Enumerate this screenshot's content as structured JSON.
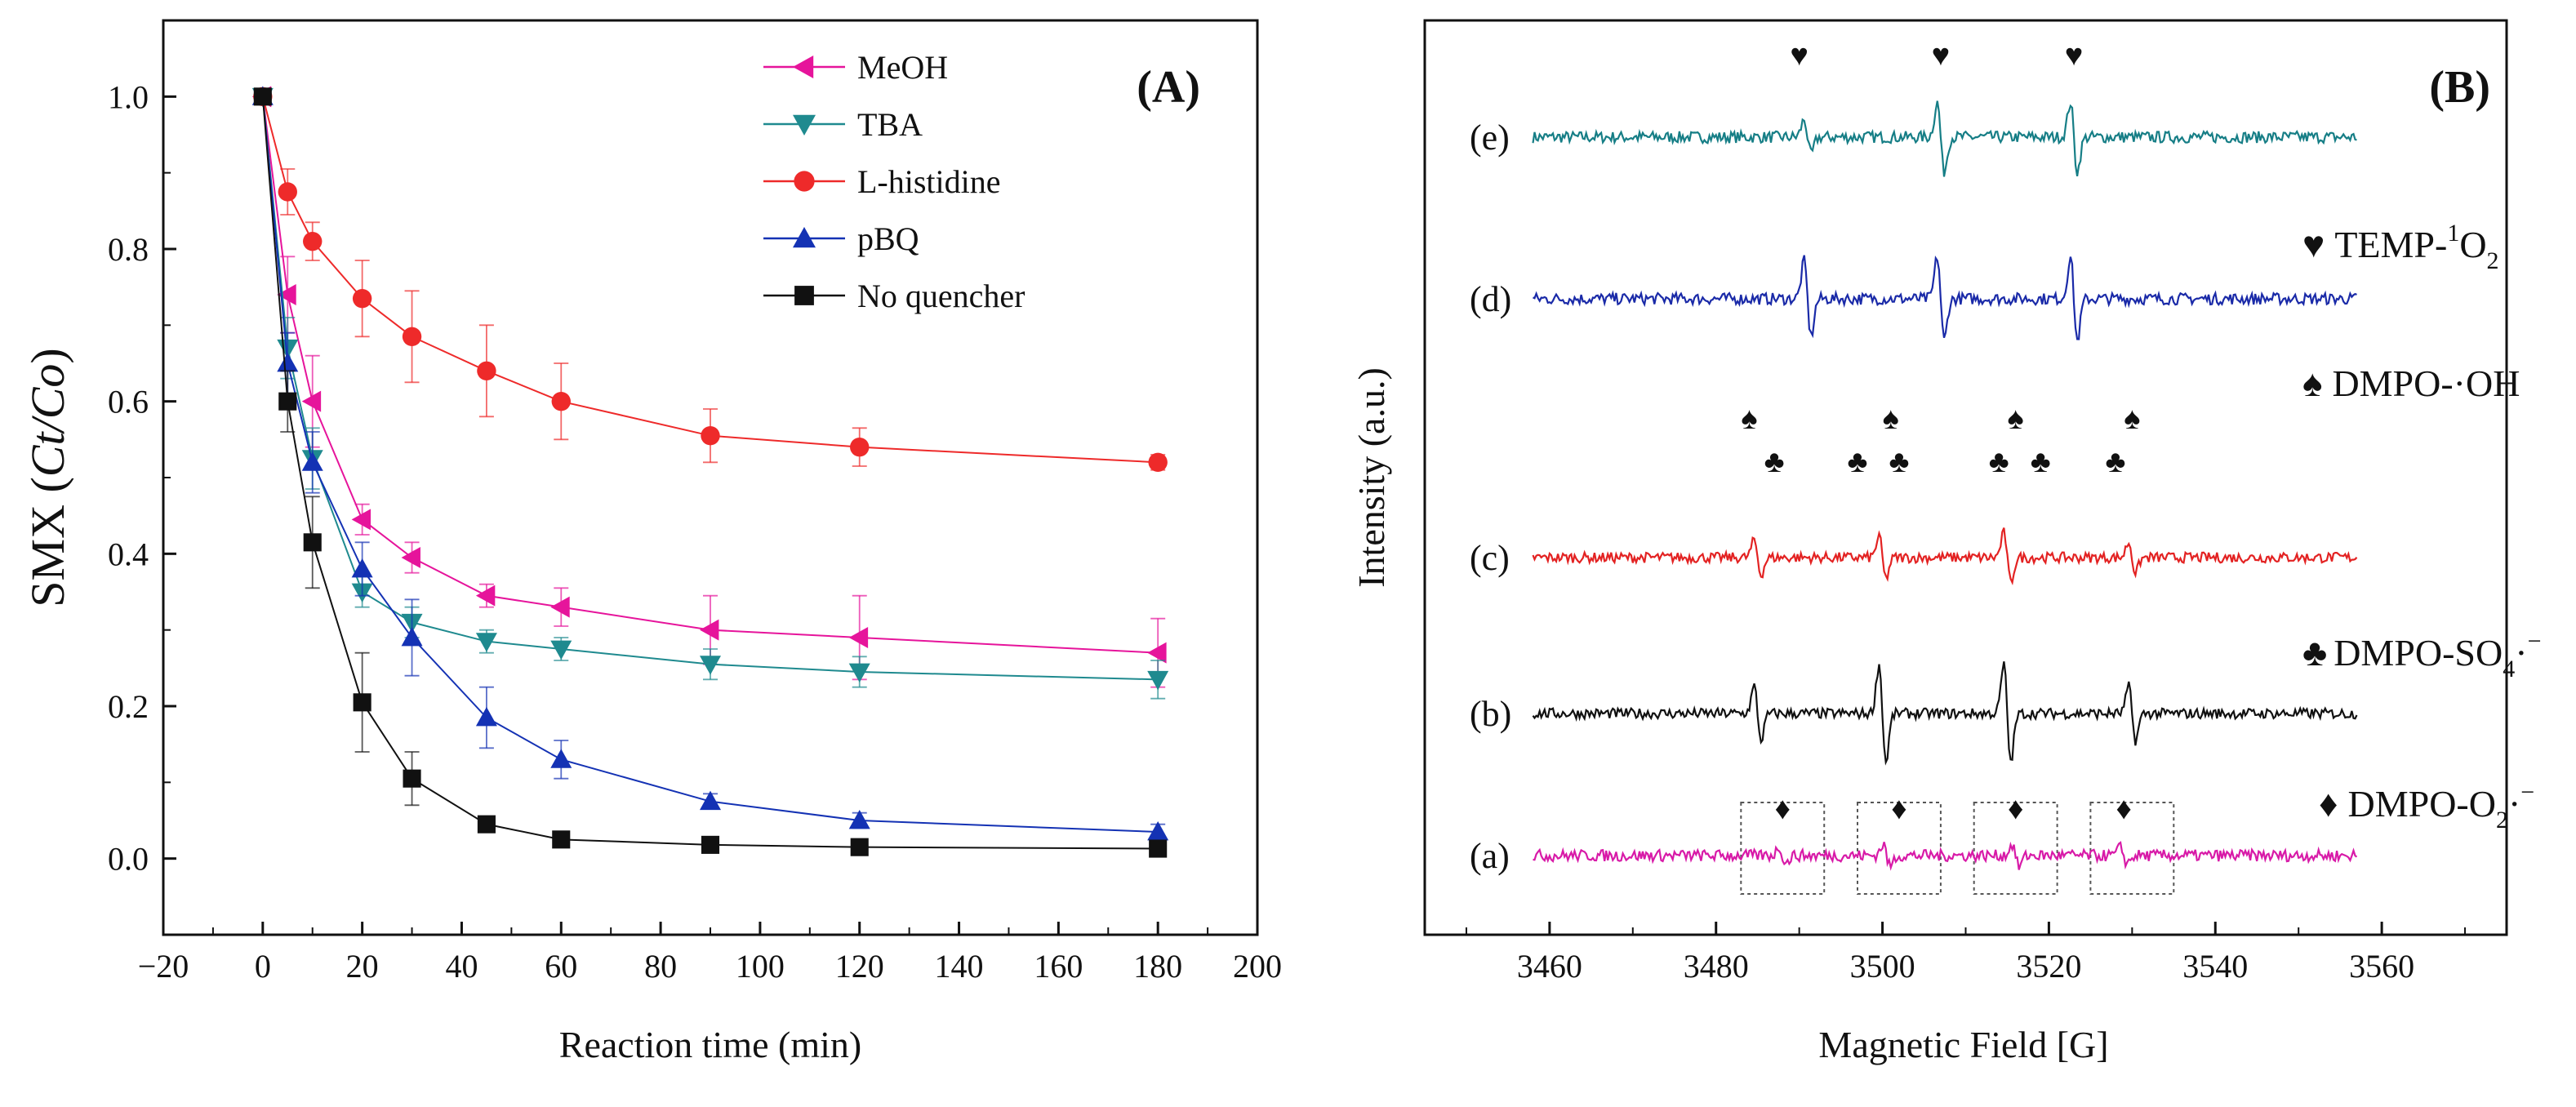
{
  "chart_data": [
    {
      "type": "line",
      "panel_label": "(A)",
      "xlabel": "Reaction time (min)",
      "ylabel_prefix": "SMX (",
      "ylabel_italic": "Ct/Co",
      "ylabel_suffix": ")",
      "xlim": [
        -20,
        200
      ],
      "ylim": [
        -0.1,
        1.1
      ],
      "xticks": [
        -20,
        0,
        20,
        40,
        60,
        80,
        100,
        120,
        140,
        160,
        180,
        200
      ],
      "xtick_labels": [
        "−20",
        "0",
        "20",
        "40",
        "60",
        "80",
        "100",
        "120",
        "140",
        "160",
        "180",
        "200"
      ],
      "yticks": [
        0.0,
        0.2,
        0.4,
        0.6,
        0.8,
        1.0
      ],
      "ytick_labels": [
        "0.0",
        "0.2",
        "0.4",
        "0.6",
        "0.8",
        "1.0"
      ],
      "x": [
        0,
        5,
        10,
        20,
        30,
        45,
        60,
        90,
        120,
        180
      ],
      "series": [
        {
          "name": "MeOH",
          "color": "#e6149b",
          "marker": "triangle-left",
          "values": [
            1.0,
            0.74,
            0.6,
            0.445,
            0.395,
            0.345,
            0.33,
            0.3,
            0.29,
            0.27
          ],
          "errors": [
            0.0,
            0.05,
            0.06,
            0.02,
            0.02,
            0.015,
            0.025,
            0.045,
            0.055,
            0.045
          ]
        },
        {
          "name": "TBA",
          "color": "#1f8a8f",
          "marker": "triangle-down",
          "values": [
            1.0,
            0.67,
            0.525,
            0.35,
            0.31,
            0.285,
            0.275,
            0.255,
            0.245,
            0.235
          ],
          "errors": [
            0.0,
            0.04,
            0.04,
            0.02,
            0.02,
            0.015,
            0.015,
            0.02,
            0.02,
            0.025
          ]
        },
        {
          "name": "L-histidine",
          "color": "#ee2a2a",
          "marker": "circle",
          "values": [
            1.0,
            0.875,
            0.81,
            0.735,
            0.685,
            0.64,
            0.6,
            0.555,
            0.54,
            0.52
          ],
          "errors": [
            0.0,
            0.03,
            0.025,
            0.05,
            0.06,
            0.06,
            0.05,
            0.035,
            0.025,
            0.01
          ]
        },
        {
          "name": "pBQ",
          "color": "#1432b4",
          "marker": "triangle-up",
          "values": [
            1.0,
            0.65,
            0.52,
            0.38,
            0.29,
            0.185,
            0.13,
            0.075,
            0.05,
            0.035
          ],
          "errors": [
            0.0,
            0.04,
            0.04,
            0.035,
            0.05,
            0.04,
            0.025,
            0.01,
            0.01,
            0.01
          ]
        },
        {
          "name": "No quencher",
          "color": "#111111",
          "marker": "square",
          "values": [
            1.0,
            0.6,
            0.415,
            0.205,
            0.105,
            0.045,
            0.025,
            0.018,
            0.015,
            0.013
          ],
          "errors": [
            0.0,
            0.04,
            0.06,
            0.065,
            0.035,
            0.01,
            0.008,
            0.005,
            0.005,
            0.005
          ]
        }
      ]
    },
    {
      "type": "line",
      "panel_label": "(B)",
      "xlabel": "Magnetic Field [G]",
      "ylabel": "Intensity (a.u.)",
      "xlim": [
        3445,
        3575
      ],
      "xticks": [
        3460,
        3480,
        3500,
        3520,
        3540,
        3560
      ],
      "xtick_labels": [
        "3460",
        "3480",
        "3500",
        "3520",
        "3540",
        "3560"
      ],
      "x_range_spectra": [
        3458,
        3557
      ],
      "spectra": [
        {
          "label": "(e)",
          "color": "#167e86",
          "peaks": [
            3491,
            3507,
            3523
          ],
          "amps": [
            0.45,
            0.9,
            0.9
          ]
        },
        {
          "label": "(d)",
          "color": "#1a2aa8",
          "peaks": [
            3491,
            3507,
            3523
          ],
          "amps": [
            0.9,
            1.0,
            1.0
          ]
        },
        {
          "label": "(c)",
          "color": "#e32222",
          "peaks": [
            3485,
            3500,
            3515,
            3530
          ],
          "amps": [
            0.45,
            0.55,
            0.65,
            0.4
          ]
        },
        {
          "label": "(b)",
          "color": "#111111",
          "peaks": [
            3485,
            3500,
            3515,
            3530
          ],
          "amps": [
            0.55,
            1.0,
            1.0,
            0.55
          ]
        },
        {
          "label": "(a)",
          "color": "#d81aa8",
          "peaks": [
            3488,
            3500.5,
            3516,
            3529
          ],
          "amps": [
            0.25,
            0.35,
            0.35,
            0.25
          ]
        }
      ],
      "legend": {
        "temp": {
          "symbol": "♥",
          "text": "TEMP-",
          "sup": "1",
          "main": "O",
          "sub": "2"
        },
        "oh": {
          "symbol": "♠",
          "text": "DMPO-·OH"
        },
        "so4": {
          "symbol": "♣",
          "text": "DMPO-SO",
          "sub": "4",
          "tail": "·",
          "sup": "−"
        },
        "o2": {
          "symbol": "♦",
          "text": "DMPO-O",
          "sub": "2",
          "tail": "·",
          "sup": "−"
        }
      },
      "symbols": {
        "heart": "♥",
        "spade": "♠",
        "club": "♣",
        "diamond": "♦"
      },
      "heart_fields": [
        3490,
        3507,
        3523
      ],
      "spade_fields": [
        3484,
        3501,
        3516,
        3530
      ],
      "club_fields": [
        3487,
        3497,
        3502,
        3514,
        3519,
        3528
      ],
      "diamond_fields": [
        3488,
        3502,
        3516,
        3529
      ],
      "boxes": [
        [
          3483,
          3493
        ],
        [
          3497,
          3507
        ],
        [
          3511,
          3521
        ],
        [
          3525,
          3535
        ]
      ]
    }
  ]
}
